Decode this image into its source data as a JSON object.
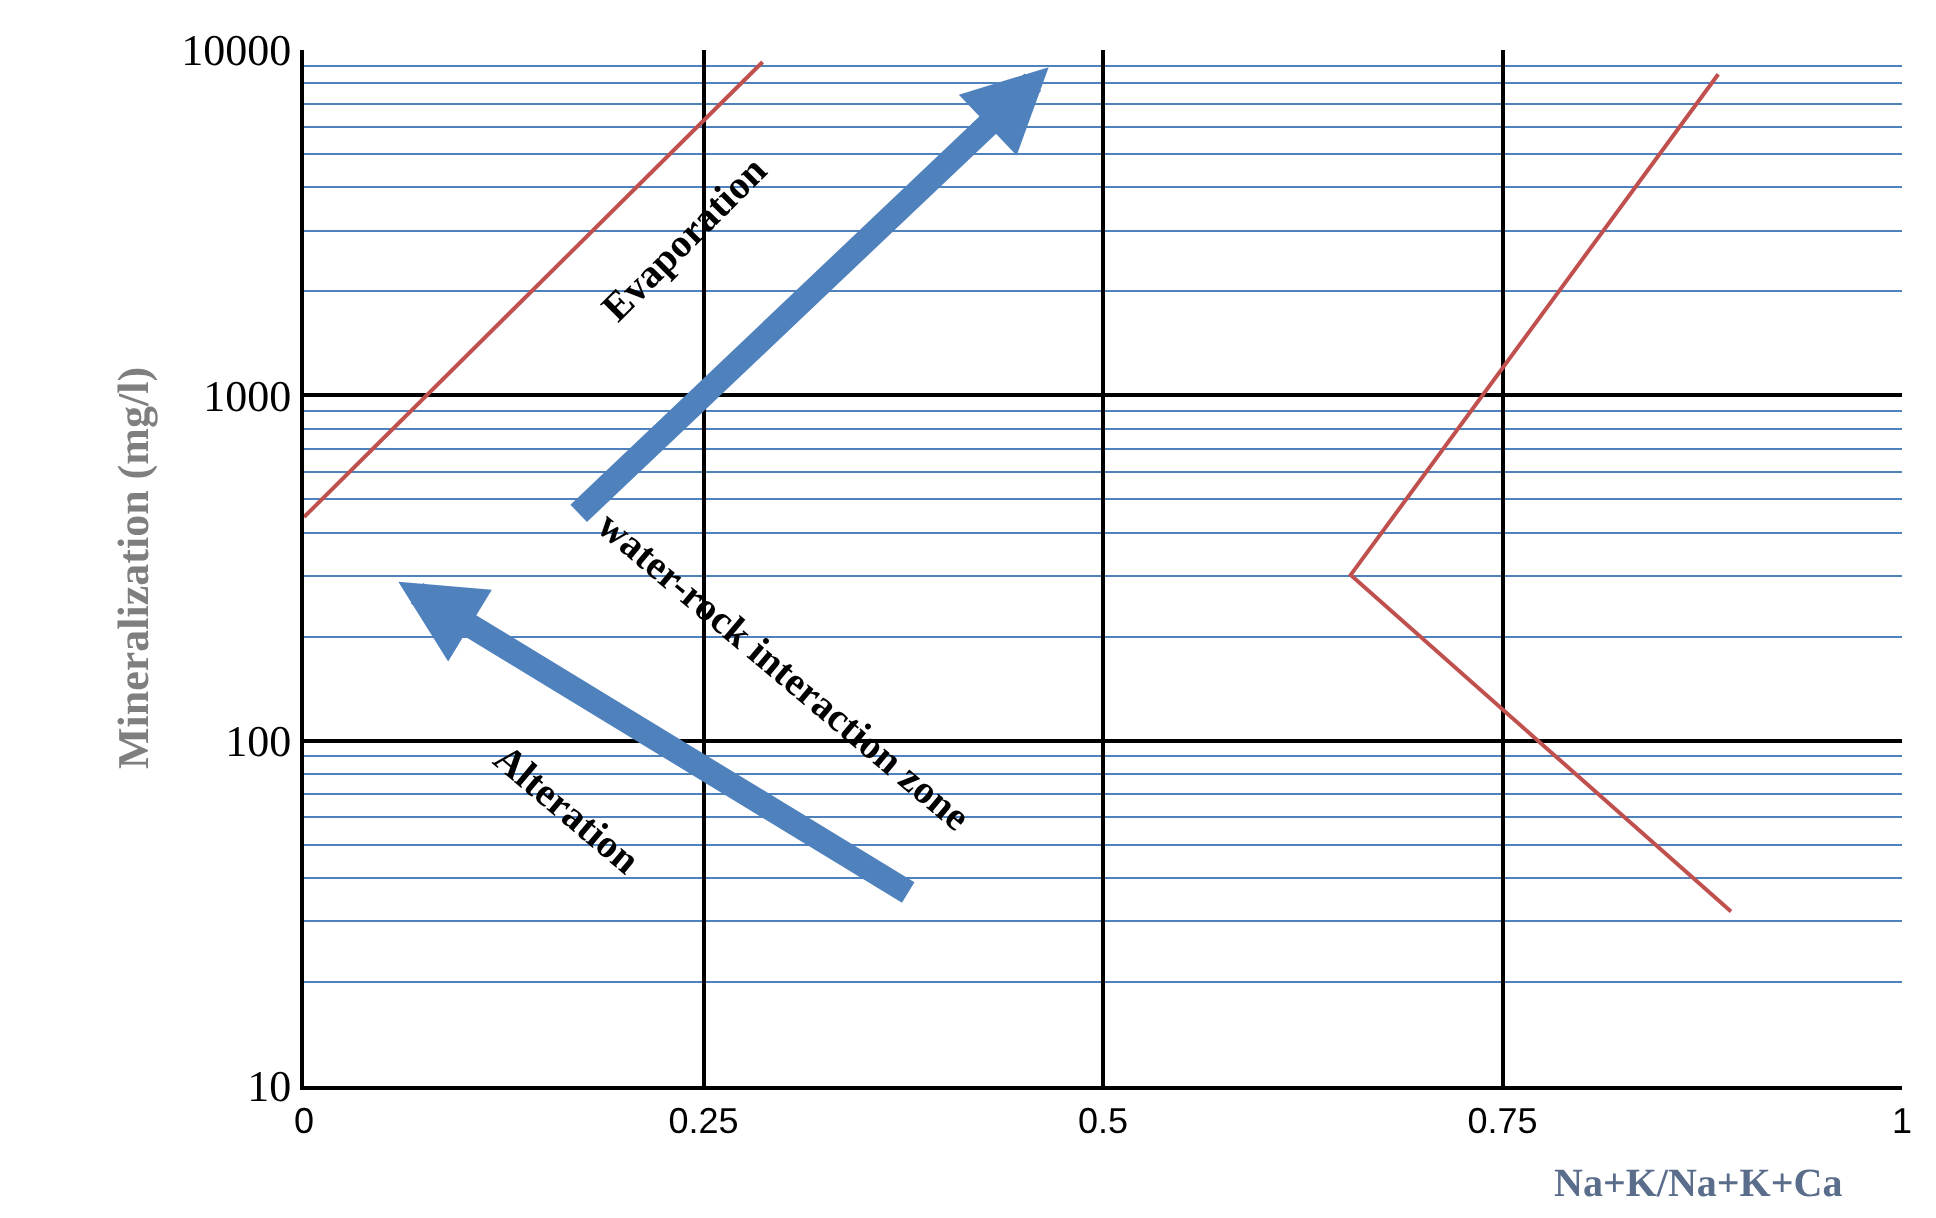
{
  "chart_data": {
    "type": "line",
    "xlabel": "Na+K/Na+K+Ca",
    "ylabel": "Mineralization (mg/l)",
    "series": [
      {
        "color": "#c0504d",
        "x": [
          0,
          0.287
        ],
        "values": [
          444,
          9230
        ]
      },
      {
        "color": "#c0504d",
        "x": [
          0.885,
          0.655,
          0.893
        ],
        "values": [
          8510,
          302,
          32
        ]
      }
    ],
    "xlim": [
      0,
      1
    ],
    "xticks": [
      0,
      0.25,
      0.5,
      0.75,
      1
    ],
    "ylim": [
      10,
      10000
    ],
    "log": true,
    "yticks": [
      10,
      {
        "value": 20,
        "label": null
      },
      {
        "value": 30,
        "label": null
      },
      {
        "value": 40,
        "label": null
      },
      {
        "value": 50,
        "label": null
      },
      {
        "value": 60,
        "label": null
      },
      {
        "value": 70,
        "label": null
      },
      {
        "value": 80,
        "label": null
      },
      {
        "value": 90,
        "label": null
      },
      100,
      {
        "value": 200,
        "label": null
      },
      {
        "value": 300,
        "label": null
      },
      {
        "value": 400,
        "label": null
      },
      {
        "value": 500,
        "label": null
      },
      {
        "value": 600,
        "label": null
      },
      {
        "value": 700,
        "label": null
      },
      {
        "value": 800,
        "label": null
      },
      {
        "value": 900,
        "label": null
      },
      1000,
      {
        "value": 2000,
        "label": null
      },
      {
        "value": 3000,
        "label": null
      },
      {
        "value": 4000,
        "label": null
      },
      {
        "value": 5000,
        "label": null
      },
      {
        "value": 6000,
        "label": null
      },
      {
        "value": 7000,
        "label": null
      },
      {
        "value": 8000,
        "label": null
      },
      {
        "value": 9000,
        "label": null
      },
      10000
    ],
    "grid": true,
    "legend": false,
    "marker": "none",
    "line_style": "solid",
    "annotations": [
      "Evaporation",
      "water-rock interaction zone",
      "Alteration"
    ]
  }
}
